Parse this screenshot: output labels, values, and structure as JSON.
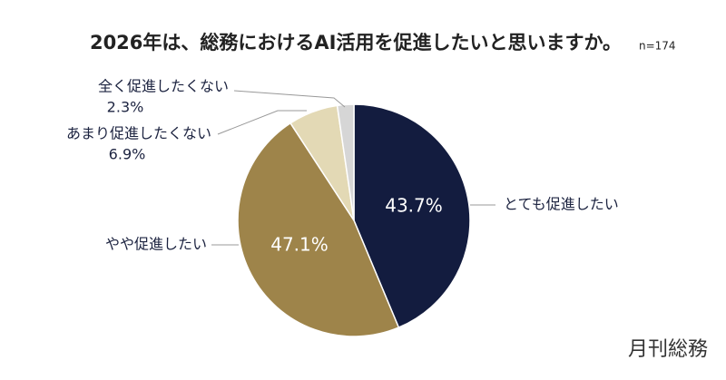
{
  "chart_data": {
    "type": "pie",
    "title": "2026年は、総務におけるAI活用を促進したいと思いますか。",
    "note": "n=174",
    "categories": [
      "とても促進したい",
      "やや促進したい",
      "あまり促進したくない",
      "全く促進したくない"
    ],
    "values": [
      43.7,
      47.1,
      6.9,
      2.3
    ],
    "value_labels": [
      "43.7%",
      "47.1%",
      "6.9%",
      "2.3%"
    ],
    "colors": [
      "#131c3f",
      "#9e844a",
      "#e3d9b5",
      "#d6d6d6"
    ]
  },
  "brand": "月刊総務"
}
